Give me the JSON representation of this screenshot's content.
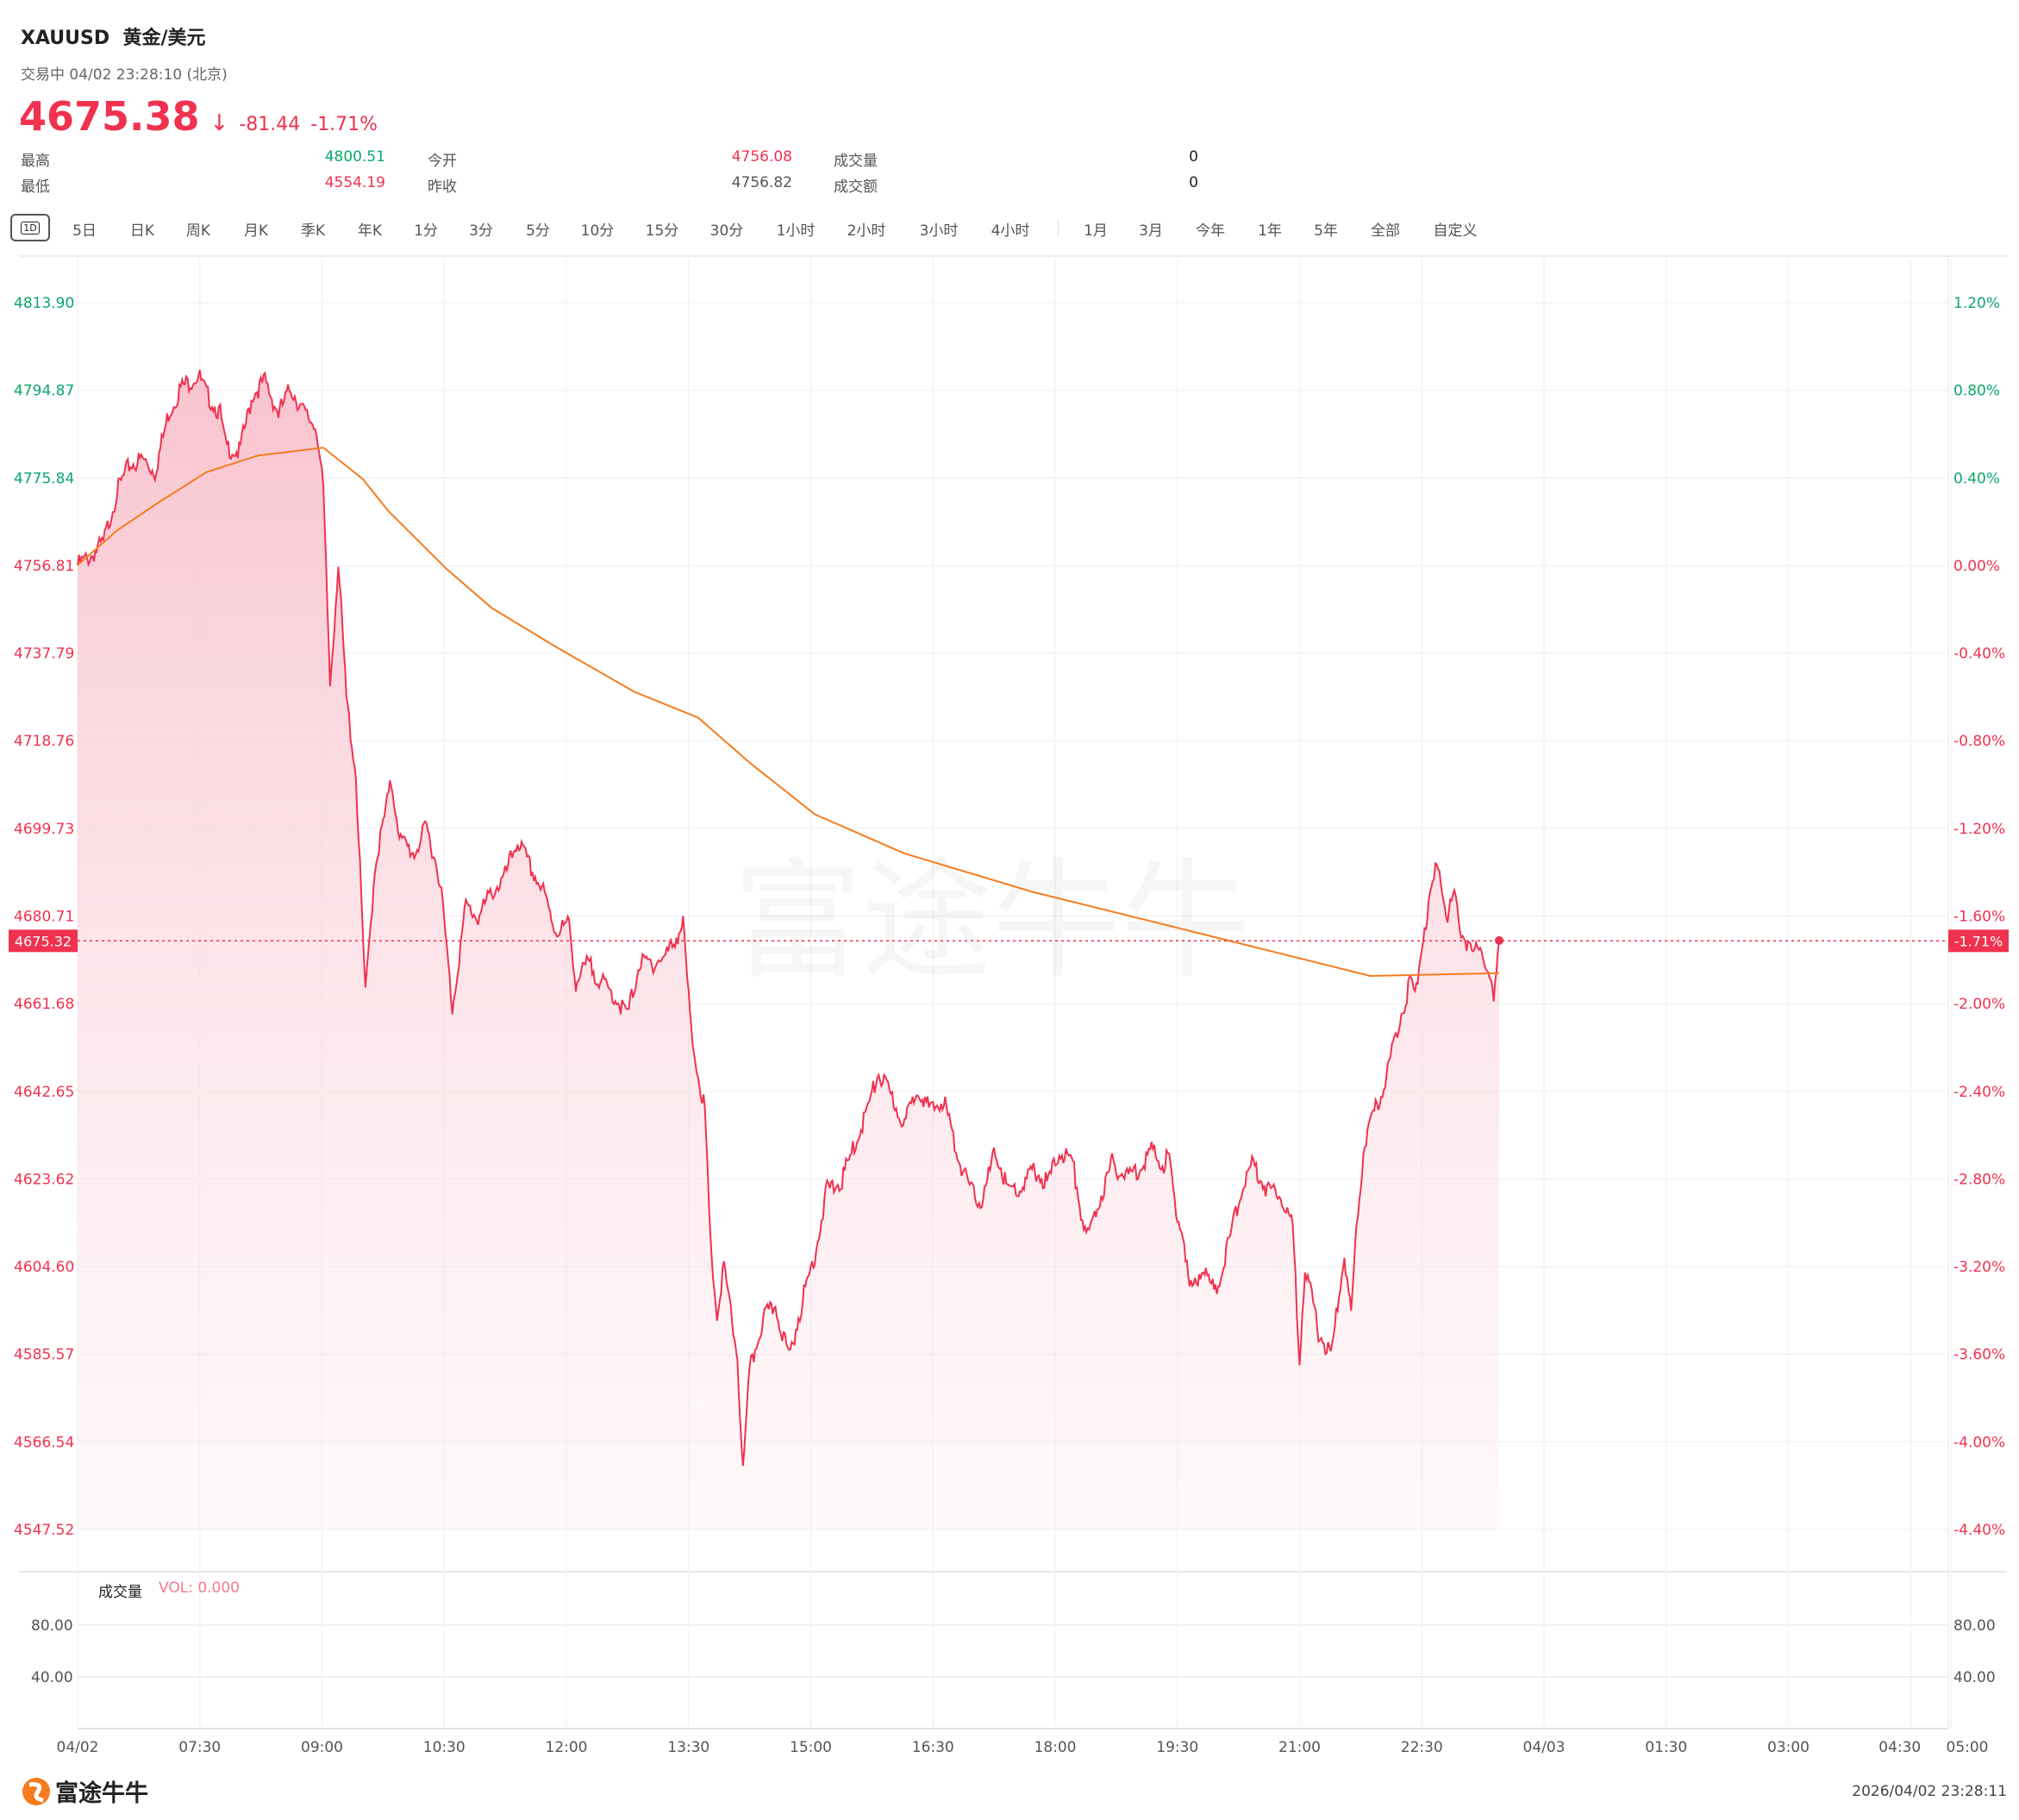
{
  "header": {
    "symbol": "XAUUSD",
    "name": "黄金/美元",
    "status": "交易中 04/02 23:28:10 (北京)",
    "price": "4675.38",
    "change": "-81.44",
    "change_pct": "-1.71%",
    "stats": [
      {
        "label": "最高",
        "value": "4800.51",
        "color": "#0aa76a"
      },
      {
        "label": "最低",
        "value": "4554.19",
        "color": "#f0324f"
      },
      {
        "label": "今开",
        "value": "4756.08",
        "color": "#f0324f"
      },
      {
        "label": "昨收",
        "value": "4756.82",
        "color": "#555555"
      },
      {
        "label": "成交量",
        "value": "0",
        "color": "#222222"
      },
      {
        "label": "成交额",
        "value": "0",
        "color": "#222222"
      }
    ]
  },
  "toolbar": {
    "active": "1D",
    "items": [
      "5日",
      "日K",
      "周K",
      "月K",
      "季K",
      "年K",
      "1分",
      "3分",
      "5分",
      "10分",
      "15分",
      "30分",
      "1小时",
      "2小时",
      "3小时",
      "4小时",
      "1月",
      "3月",
      "今年",
      "1年",
      "5年",
      "全部",
      "自定义"
    ]
  },
  "colors": {
    "up": "#0aa76a",
    "down": "#f0324f",
    "avg": "#f57c1f"
  },
  "watermark": "富途牛牛",
  "chart_data": {
    "type": "line",
    "title": "XAUUSD 黄金/美元 分时",
    "x_unit": "minutes since 06:00 (04/02)",
    "x_range": [
      0,
      1380
    ],
    "ylim": [
      4547.52,
      4813.9
    ],
    "prev_close": 4756.81,
    "current_price": "4675.32",
    "current_pct": "-1.71%",
    "y_ticks": [
      "4813.90",
      "4794.87",
      "4775.84",
      "4756.81",
      "4737.79",
      "4718.76",
      "4699.73",
      "4680.71",
      "4661.68",
      "4642.65",
      "4623.62",
      "4604.60",
      "4585.57",
      "4566.54",
      "4547.52"
    ],
    "y_ticks_pct": [
      "1.20%",
      "0.80%",
      "0.40%",
      "0.00%",
      "-0.40%",
      "-0.80%",
      "-1.20%",
      "-1.60%",
      "-2.00%",
      "-2.40%",
      "-2.80%",
      "-3.20%",
      "-3.60%",
      "-4.00%",
      "-4.40%"
    ],
    "x_ticks": [
      {
        "label": "04/02",
        "t": 0
      },
      {
        "label": "07:30",
        "t": 90
      },
      {
        "label": "09:00",
        "t": 180
      },
      {
        "label": "10:30",
        "t": 270
      },
      {
        "label": "12:00",
        "t": 360
      },
      {
        "label": "13:30",
        "t": 450
      },
      {
        "label": "15:00",
        "t": 540
      },
      {
        "label": "16:30",
        "t": 630
      },
      {
        "label": "18:00",
        "t": 720
      },
      {
        "label": "19:30",
        "t": 810
      },
      {
        "label": "21:00",
        "t": 900
      },
      {
        "label": "22:30",
        "t": 990
      },
      {
        "label": "04/03",
        "t": 1080
      },
      {
        "label": "01:30",
        "t": 1170
      },
      {
        "label": "03:00",
        "t": 1260
      },
      {
        "label": "04:30",
        "t": 1350
      },
      {
        "label": "05:00",
        "t": 1380
      }
    ],
    "series": [
      {
        "name": "price",
        "points": [
          [
            0,
            4756.9
          ],
          [
            10,
            4758.9
          ],
          [
            19,
            4761.7
          ],
          [
            29,
            4772.9
          ],
          [
            38,
            4778.5
          ],
          [
            48,
            4779.9
          ],
          [
            57,
            4777.1
          ],
          [
            67,
            4789.8
          ],
          [
            76,
            4795.4
          ],
          [
            89,
            4798.2
          ],
          [
            95,
            4794.0
          ],
          [
            105,
            4789.8
          ],
          [
            109,
            4782.7
          ],
          [
            119,
            4781.3
          ],
          [
            129,
            4794.0
          ],
          [
            138,
            4796.8
          ],
          [
            148,
            4789.8
          ],
          [
            157,
            4795.4
          ],
          [
            167,
            4789.8
          ],
          [
            176,
            4786.9
          ],
          [
            181,
            4772.9
          ],
          [
            186,
            4730.8
          ],
          [
            192,
            4757.5
          ],
          [
            198,
            4728.0
          ],
          [
            205,
            4711.2
          ],
          [
            212,
            4663.4
          ],
          [
            219,
            4691.5
          ],
          [
            231,
            4709.8
          ],
          [
            238,
            4697.1
          ],
          [
            248,
            4694.3
          ],
          [
            257,
            4700.0
          ],
          [
            267,
            4688.7
          ],
          [
            276,
            4660.6
          ],
          [
            286,
            4683.1
          ],
          [
            295,
            4680.3
          ],
          [
            305,
            4685.9
          ],
          [
            314,
            4688.7
          ],
          [
            324,
            4697.1
          ],
          [
            333,
            4691.5
          ],
          [
            343,
            4685.9
          ],
          [
            352,
            4677.5
          ],
          [
            362,
            4678.9
          ],
          [
            367,
            4666.2
          ],
          [
            376,
            4670.5
          ],
          [
            386,
            4666.2
          ],
          [
            395,
            4663.4
          ],
          [
            405,
            4659.2
          ],
          [
            414,
            4670.5
          ],
          [
            424,
            4670.5
          ],
          [
            433,
            4671.9
          ],
          [
            446,
            4678.9
          ],
          [
            452,
            4655.0
          ],
          [
            457,
            4646.6
          ],
          [
            462,
            4638.2
          ],
          [
            466,
            4610.1
          ],
          [
            471,
            4593.3
          ],
          [
            476,
            4604.5
          ],
          [
            486,
            4584.8
          ],
          [
            490,
            4559.6
          ],
          [
            495,
            4582.0
          ],
          [
            505,
            4593.3
          ],
          [
            514,
            4596.1
          ],
          [
            524,
            4584.8
          ],
          [
            533,
            4596.1
          ],
          [
            543,
            4607.3
          ],
          [
            552,
            4621.3
          ],
          [
            562,
            4622.7
          ],
          [
            571,
            4629.8
          ],
          [
            581,
            4638.2
          ],
          [
            590,
            4646.6
          ],
          [
            600,
            4641.0
          ],
          [
            609,
            4635.4
          ],
          [
            619,
            4643.8
          ],
          [
            628,
            4638.2
          ],
          [
            638,
            4641.0
          ],
          [
            647,
            4629.8
          ],
          [
            657,
            4621.3
          ],
          [
            666,
            4618.5
          ],
          [
            676,
            4629.8
          ],
          [
            685,
            4621.3
          ],
          [
            695,
            4621.3
          ],
          [
            704,
            4625.6
          ],
          [
            714,
            4622.7
          ],
          [
            724,
            4629.8
          ],
          [
            733,
            4627.0
          ],
          [
            743,
            4610.1
          ],
          [
            752,
            4618.5
          ],
          [
            762,
            4627.0
          ],
          [
            771,
            4624.2
          ],
          [
            781,
            4625.6
          ],
          [
            790,
            4629.8
          ],
          [
            800,
            4627.0
          ],
          [
            804,
            4628.4
          ],
          [
            809,
            4615.7
          ],
          [
            814,
            4612.9
          ],
          [
            819,
            4598.9
          ],
          [
            828,
            4604.5
          ],
          [
            838,
            4598.9
          ],
          [
            847,
            4608.7
          ],
          [
            857,
            4621.3
          ],
          [
            866,
            4627.0
          ],
          [
            876,
            4621.3
          ],
          [
            885,
            4621.3
          ],
          [
            895,
            4612.9
          ],
          [
            900,
            4584.8
          ],
          [
            904,
            4604.5
          ],
          [
            914,
            4590.5
          ],
          [
            923,
            4584.8
          ],
          [
            933,
            4607.3
          ],
          [
            938,
            4593.3
          ],
          [
            942,
            4612.9
          ],
          [
            947,
            4629.8
          ],
          [
            952,
            4635.4
          ],
          [
            962,
            4643.8
          ],
          [
            971,
            4655.0
          ],
          [
            981,
            4666.2
          ],
          [
            985,
            4663.4
          ],
          [
            990,
            4674.7
          ],
          [
            995,
            4683.1
          ],
          [
            1002,
            4692.9
          ],
          [
            1009,
            4680.3
          ],
          [
            1014,
            4685.9
          ],
          [
            1019,
            4677.5
          ],
          [
            1024,
            4674.7
          ],
          [
            1028,
            4671.9
          ],
          [
            1033,
            4674.7
          ],
          [
            1038,
            4669.1
          ],
          [
            1043,
            4662.0
          ],
          [
            1047,
            4675.4
          ]
        ]
      },
      {
        "name": "average",
        "points": [
          [
            0,
            4756.9
          ],
          [
            29,
            4764.4
          ],
          [
            57,
            4770.0
          ],
          [
            95,
            4777.1
          ],
          [
            133,
            4780.7
          ],
          [
            181,
            4782.4
          ],
          [
            210,
            4775.6
          ],
          [
            229,
            4768.6
          ],
          [
            272,
            4756.0
          ],
          [
            305,
            4747.6
          ],
          [
            352,
            4739.2
          ],
          [
            410,
            4729.4
          ],
          [
            457,
            4723.8
          ],
          [
            495,
            4714.0
          ],
          [
            543,
            4702.8
          ],
          [
            609,
            4694.3
          ],
          [
            704,
            4685.9
          ],
          [
            800,
            4678.9
          ],
          [
            895,
            4671.9
          ],
          [
            952,
            4667.7
          ],
          [
            1047,
            4668.3
          ]
        ]
      }
    ],
    "volume": {
      "label": "成交量",
      "value_label": "VOL: 0.000",
      "ticks": [
        "80.00",
        "40.00"
      ],
      "values": []
    }
  },
  "footer": {
    "brand": "富途牛牛",
    "timestamp": "2026/04/02 23:28:11"
  }
}
